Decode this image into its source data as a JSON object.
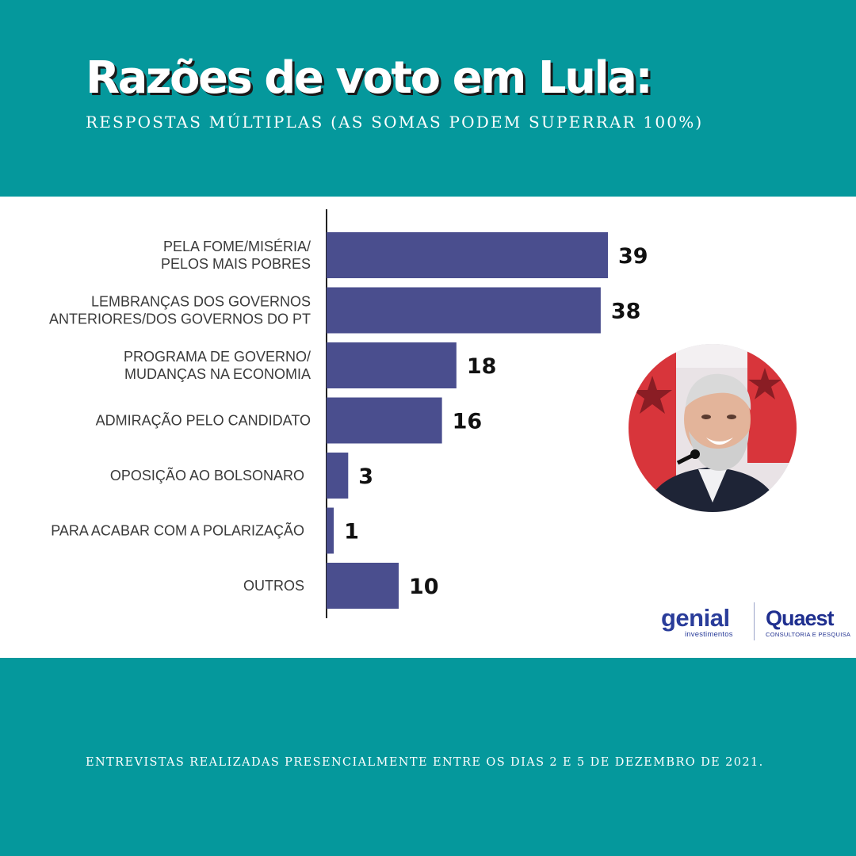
{
  "header": {
    "title": "Razões de voto em Lula:",
    "subtitle": "RESPOSTAS MÚLTIPLAS (AS SOMAS PODEM SUPERRAR 100%)"
  },
  "chart_data": {
    "type": "bar",
    "orientation": "horizontal",
    "categories": [
      [
        "PELA FOME/MISÉRIA/",
        "PELOS MAIS POBRES"
      ],
      [
        "LEMBRANÇAS DOS GOVERNOS",
        "ANTERIORES/DOS GOVERNOS DO PT"
      ],
      [
        "PROGRAMA DE GOVERNO/",
        "MUDANÇAS NA ECONOMIA"
      ],
      [
        "ADMIRAÇÃO PELO CANDIDATO"
      ],
      [
        "OPOSIÇÃO AO BOLSONARO"
      ],
      [
        "PARA ACABAR COM A POLARIZAÇÃO"
      ],
      [
        "OUTROS"
      ]
    ],
    "values": [
      39,
      38,
      18,
      16,
      3,
      1,
      10
    ],
    "value_labels": [
      "39",
      "38",
      "18",
      "16",
      "3",
      "1",
      "10"
    ],
    "bar_color": "#4a4e8e",
    "xlim": [
      0,
      39
    ],
    "grid": false,
    "legend": "none"
  },
  "logos": {
    "genial": {
      "word": "genial",
      "sub": "investimentos"
    },
    "quaest": {
      "word": "Quaest",
      "sub": "CONSULTORIA E PESQUISA"
    }
  },
  "footer": {
    "note": "ENTREVISTAS REALIZADAS PRESENCIALMENTE ENTRE OS DIAS 2 E 5 DE DEZEMBRO DE 2021."
  },
  "colors": {
    "background": "#05989c",
    "panel": "#ffffff",
    "bar": "#4a4e8e",
    "title": "#ffffff",
    "logo": "#2a3d9a"
  },
  "photo": {
    "subject": "candidate-portrait"
  }
}
